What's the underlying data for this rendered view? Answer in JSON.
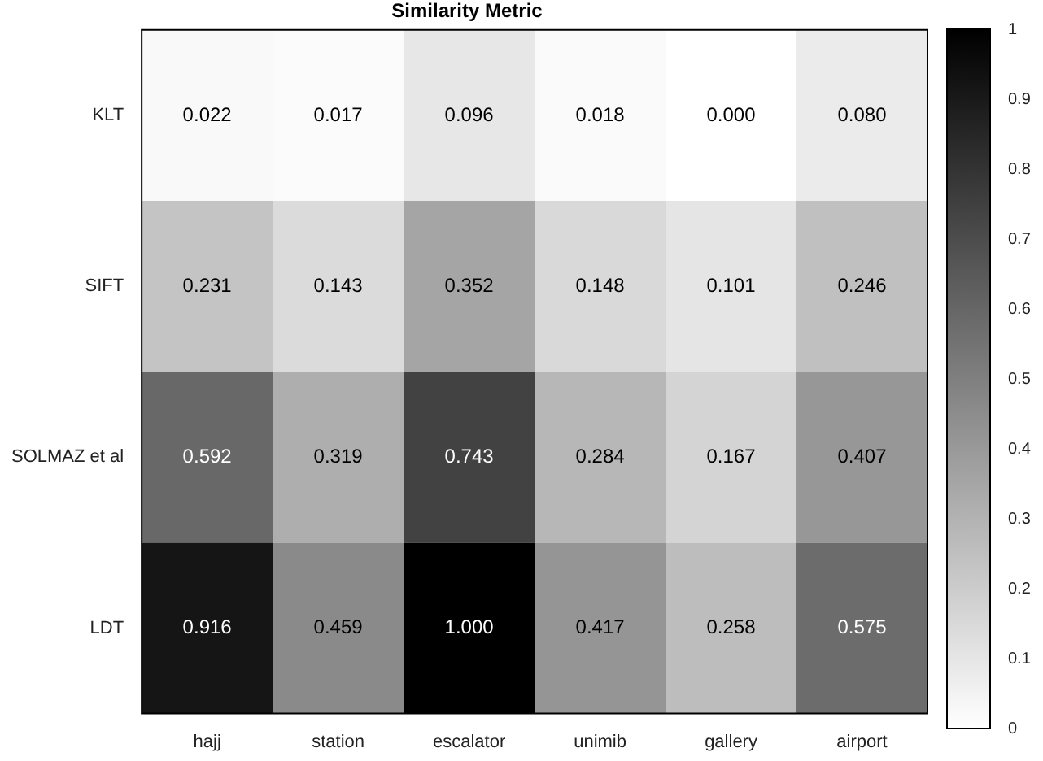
{
  "chart_data": {
    "type": "heatmap",
    "title": "Similarity Metric",
    "categories": [
      "hajj",
      "station",
      "escalator",
      "unimib",
      "gallery",
      "airport"
    ],
    "y_categories": [
      "KLT",
      "SIFT",
      "SOLMAZ et al",
      "LDT"
    ],
    "cells": [
      [
        0.022,
        0.017,
        0.096,
        0.018,
        0.0,
        0.08
      ],
      [
        0.231,
        0.143,
        0.352,
        0.148,
        0.101,
        0.246
      ],
      [
        0.592,
        0.319,
        0.743,
        0.284,
        0.167,
        0.407
      ],
      [
        0.916,
        0.459,
        1.0,
        0.417,
        0.258,
        0.575
      ]
    ],
    "cell_labels": [
      [
        "0.022",
        "0.017",
        "0.096",
        "0.018",
        "0.000",
        "0.080"
      ],
      [
        "0.231",
        "0.143",
        "0.352",
        "0.148",
        "0.101",
        "0.246"
      ],
      [
        "0.592",
        "0.319",
        "0.743",
        "0.284",
        "0.167",
        "0.407"
      ],
      [
        "0.916",
        "0.459",
        "1.000",
        "0.417",
        "0.258",
        "0.575"
      ]
    ],
    "clim": [
      0,
      1
    ],
    "cticks": [
      0,
      0.1,
      0.2,
      0.3,
      0.4,
      0.5,
      0.6,
      0.7,
      0.8,
      0.9,
      1
    ],
    "legend": false
  }
}
